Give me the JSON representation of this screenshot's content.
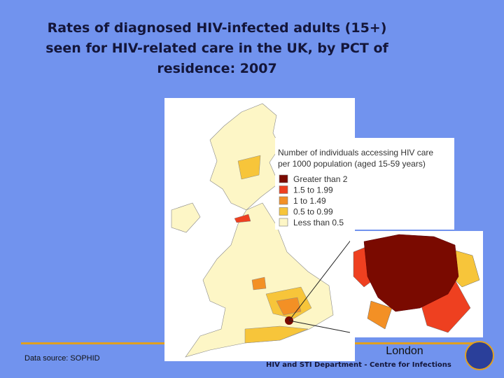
{
  "title_lines": [
    "Rates of diagnosed HIV-infected adults (15+)",
    "seen for HIV-related care in the UK, by PCT of",
    "residence: 2007"
  ],
  "legend": {
    "title_lines": [
      "Number of individuals accessing HIV care",
      "per 1000 population (aged 15-59 years)"
    ],
    "items": [
      {
        "label": "Greater than 2",
        "color": "#7a0a00"
      },
      {
        "label": "1.5 to 1.99",
        "color": "#ee4020"
      },
      {
        "label": "1    to 1.49",
        "color": "#f39025"
      },
      {
        "label": "0.5 to 0.99",
        "color": "#f7c53a"
      },
      {
        "label": "Less than 0.5",
        "color": "#fdf6c6"
      }
    ]
  },
  "inset_label": "London",
  "source": "Data source: SOPHID",
  "footer": "HIV and STI Department  - Centre for Infections"
}
